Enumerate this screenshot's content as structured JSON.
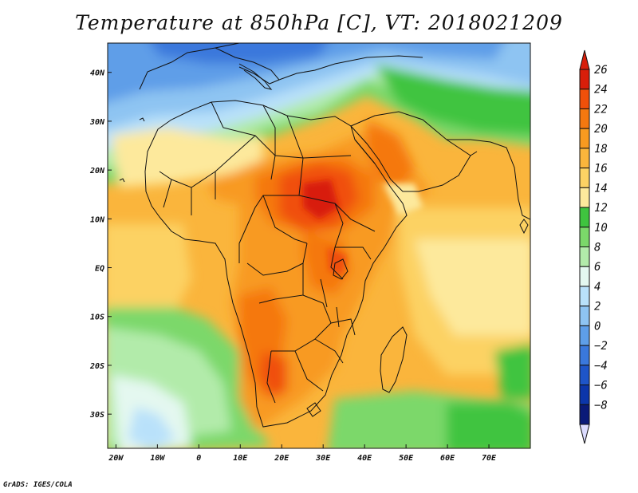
{
  "title": "Temperature at 850hPa [C], VT: 2018021209",
  "credit": "GrADS: IGES/COLA",
  "map": {
    "lon_range": [
      -22,
      80
    ],
    "lat_range": [
      -37,
      46
    ],
    "x_ticks": [
      {
        "lon": -20,
        "label": "20W"
      },
      {
        "lon": -10,
        "label": "10W"
      },
      {
        "lon": 0,
        "label": "0"
      },
      {
        "lon": 10,
        "label": "10E"
      },
      {
        "lon": 20,
        "label": "20E"
      },
      {
        "lon": 30,
        "label": "30E"
      },
      {
        "lon": 40,
        "label": "40E"
      },
      {
        "lon": 50,
        "label": "50E"
      },
      {
        "lon": 60,
        "label": "60E"
      },
      {
        "lon": 70,
        "label": "70E"
      }
    ],
    "y_ticks": [
      {
        "lat": 40,
        "label": "40N"
      },
      {
        "lat": 30,
        "label": "30N"
      },
      {
        "lat": 20,
        "label": "20N"
      },
      {
        "lat": 10,
        "label": "10N"
      },
      {
        "lat": 0,
        "label": "EQ"
      },
      {
        "lat": -10,
        "label": "10S"
      },
      {
        "lat": -20,
        "label": "20S"
      },
      {
        "lat": -30,
        "label": "30S"
      }
    ]
  },
  "colorbar": {
    "levels": [
      "26",
      "24",
      "22",
      "20",
      "18",
      "16",
      "14",
      "12",
      "10",
      "8",
      "6",
      "4",
      "2",
      "0",
      "−2",
      "−4",
      "−6",
      "−8"
    ],
    "colors_top_to_bottom": [
      "#d81e0a",
      "#f0500a",
      "#f5780f",
      "#f89a20",
      "#fab53c",
      "#fcd264",
      "#fde99c",
      "#3fc43f",
      "#7bd86a",
      "#b2ebaa",
      "#e4f8f0",
      "#b9e1fa",
      "#8ec4f2",
      "#5e9ee8",
      "#3a78dc",
      "#1e55c8",
      "#0c36aa",
      "#0a1a78"
    ],
    "over_color": "#d81e0a",
    "under_color": "#dcdcff"
  }
}
